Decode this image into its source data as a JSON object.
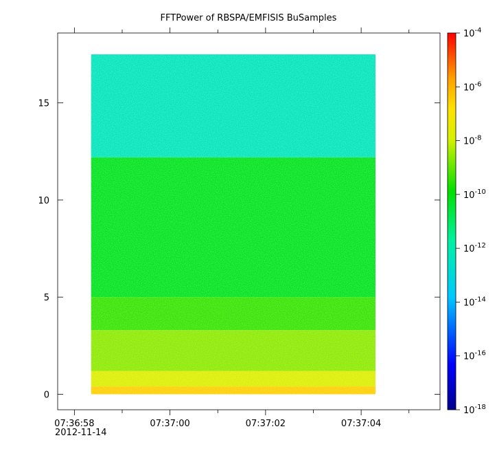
{
  "chart_data": {
    "type": "heatmap",
    "title": "FFTPower of RBSPA/EMFISIS  BuSamples",
    "xlabel": "",
    "ylabel": "",
    "x_ticks": [
      "07:36:58",
      "07:37:00",
      "07:37:02",
      "07:37:04"
    ],
    "x_date_label": "2012-11-14",
    "x_range_seconds": [
      -0.35,
      7.65
    ],
    "data_x_range_seconds": [
      0.35,
      6.3
    ],
    "y_ticks": [
      0,
      5,
      10,
      15
    ],
    "ylim": [
      -0.8,
      18.6
    ],
    "data_y_range": [
      0,
      17.5
    ],
    "colorbar": {
      "scale": "log",
      "range": [
        "1e-18",
        "1e-4"
      ],
      "tick_labels": [
        {
          "base": "10",
          "exp": "-4"
        },
        {
          "base": "10",
          "exp": "-6"
        },
        {
          "base": "10",
          "exp": "-8"
        },
        {
          "base": "10",
          "exp": "-10"
        },
        {
          "base": "10",
          "exp": "-12"
        },
        {
          "base": "10",
          "exp": "-14"
        },
        {
          "base": "10",
          "exp": "-16"
        },
        {
          "base": "10",
          "exp": "-18"
        }
      ]
    },
    "bands": [
      {
        "y": [
          0,
          0.4
        ],
        "log_power": -6.5
      },
      {
        "y": [
          0.4,
          1.2
        ],
        "log_power": -7.8
      },
      {
        "y": [
          1.2,
          3.3
        ],
        "log_power": -8.6
      },
      {
        "y": [
          3.3,
          5.0
        ],
        "log_power": -9.4
      },
      {
        "y": [
          5.0,
          12.2
        ],
        "log_power": -10.2
      },
      {
        "y": [
          12.2,
          17.5
        ],
        "log_power": -12.3
      }
    ],
    "grid": false
  }
}
